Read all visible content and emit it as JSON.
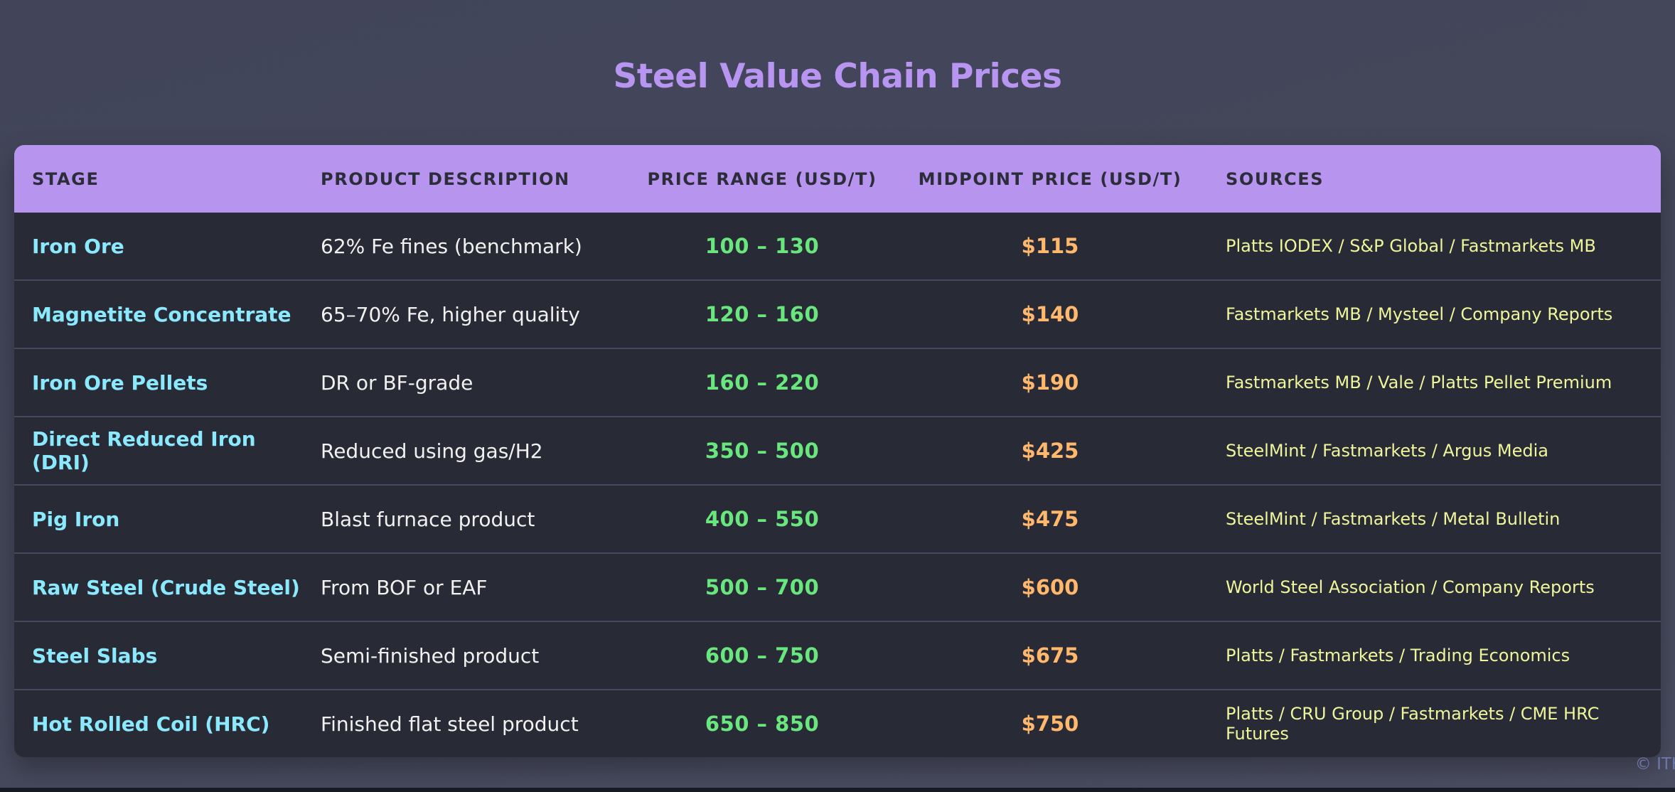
{
  "page": {
    "title": "Steel Value Chain Prices",
    "footer_copyright": "© ITK",
    "colors": {
      "page_background": "#44475a",
      "header_background": "#b794ee",
      "header_text": "#2b2d3a",
      "row_background": "#282a36",
      "row_divider": "#454960",
      "title_purple": "#b795f1",
      "stage_cyan": "#8be9fd",
      "description_white": "#f1f1ef",
      "range_green": "#69e77e",
      "midpoint_orange": "#ffb86c",
      "sources_yellow": "#eff59b",
      "footer_blue": "#6b77a8"
    }
  },
  "table": {
    "columns": [
      "STAGE",
      "PRODUCT DESCRIPTION",
      "PRICE RANGE (USD/T)",
      "MIDPOINT PRICE (USD/T)",
      "SOURCES"
    ],
    "rows": [
      {
        "stage": "Iron Ore",
        "description": "62% Fe fines (benchmark)",
        "price_range": "100 – 130",
        "midpoint": "$115",
        "sources": "Platts IODEX / S&P Global / Fastmarkets MB"
      },
      {
        "stage": "Magnetite Concentrate",
        "description": "65–70% Fe, higher quality",
        "price_range": "120 – 160",
        "midpoint": "$140",
        "sources": "Fastmarkets MB / Mysteel / Company Reports"
      },
      {
        "stage": "Iron Ore Pellets",
        "description": "DR or BF-grade",
        "price_range": "160 – 220",
        "midpoint": "$190",
        "sources": "Fastmarkets MB / Vale / Platts Pellet Premium"
      },
      {
        "stage": "Direct Reduced Iron (DRI)",
        "description": "Reduced using gas/H2",
        "price_range": "350 – 500",
        "midpoint": "$425",
        "sources": "SteelMint / Fastmarkets / Argus Media"
      },
      {
        "stage": "Pig Iron",
        "description": "Blast furnace product",
        "price_range": "400 – 550",
        "midpoint": "$475",
        "sources": "SteelMint / Fastmarkets / Metal Bulletin"
      },
      {
        "stage": "Raw Steel (Crude Steel)",
        "description": "From BOF or EAF",
        "price_range": "500 – 700",
        "midpoint": "$600",
        "sources": "World Steel Association / Company Reports"
      },
      {
        "stage": "Steel Slabs",
        "description": "Semi-finished product",
        "price_range": "600 – 750",
        "midpoint": "$675",
        "sources": "Platts / Fastmarkets / Trading Economics"
      },
      {
        "stage": "Hot Rolled Coil (HRC)",
        "description": "Finished flat steel product",
        "price_range": "650 – 850",
        "midpoint": "$750",
        "sources": "Platts / CRU Group / Fastmarkets / CME HRC Futures"
      }
    ]
  }
}
